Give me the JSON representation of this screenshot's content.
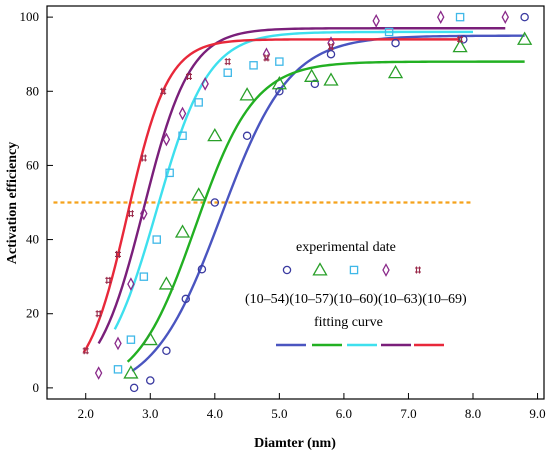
{
  "chart_data": {
    "type": "scatter",
    "xlabel": "Diamter (nm)",
    "ylabel": "Activation efficiency",
    "xlim": [
      1.4,
      9.1
    ],
    "ylim": [
      -3,
      103
    ],
    "x_ticks": [
      "2.0",
      "3.0",
      "4.0",
      "5.0",
      "6.0",
      "7.0",
      "8.0",
      "9.0"
    ],
    "x_tick_values": [
      2,
      3,
      4,
      5,
      6,
      7,
      8,
      9
    ],
    "y_ticks": [
      "0",
      "20",
      "40",
      "60",
      "80",
      "100"
    ],
    "y_tick_values": [
      0,
      20,
      40,
      60,
      80,
      100
    ],
    "reference_line": {
      "y": 50,
      "x_range": [
        1.5,
        8.0
      ],
      "color": "#f5a21b",
      "style": "dashed"
    },
    "legend": {
      "title_points": "experimental date",
      "title_curves": "fitting curve",
      "labels_text": "(10–54)(10–57)(10–60)(10–63)(10–69)"
    },
    "series": [
      {
        "name": "(10–54)",
        "marker": "circle",
        "marker_color": "#3a3aa0",
        "curve_color": "#4a55c0",
        "points": [
          [
            2.75,
            0
          ],
          [
            3.0,
            2
          ],
          [
            3.25,
            10
          ],
          [
            3.55,
            24
          ],
          [
            3.8,
            32
          ],
          [
            4.0,
            50
          ],
          [
            4.5,
            68
          ],
          [
            5.0,
            80
          ],
          [
            5.55,
            82
          ],
          [
            5.8,
            90
          ],
          [
            6.8,
            93
          ],
          [
            7.85,
            94
          ],
          [
            8.8,
            100
          ]
        ],
        "curve": {
          "x0": 4.1,
          "k": 1.9,
          "top": 95,
          "base": -2,
          "x_start": 2.72,
          "x_end": 8.8
        }
      },
      {
        "name": "(10–57)",
        "marker": "triangle",
        "marker_color": "#2aa02a",
        "curve_color": "#22b022",
        "points": [
          [
            2.7,
            4
          ],
          [
            3.0,
            13
          ],
          [
            3.25,
            28
          ],
          [
            3.5,
            42
          ],
          [
            3.75,
            52
          ],
          [
            4.0,
            68
          ],
          [
            4.5,
            79
          ],
          [
            5.0,
            82
          ],
          [
            5.5,
            84
          ],
          [
            5.8,
            83
          ],
          [
            6.8,
            85
          ],
          [
            7.8,
            92
          ],
          [
            8.8,
            94
          ]
        ],
        "curve": {
          "x0": 3.7,
          "k": 2.2,
          "top": 88,
          "base": -1,
          "x_start": 2.65,
          "x_end": 8.8
        }
      },
      {
        "name": "(10–60)",
        "marker": "square",
        "marker_color": "#3fb8e8",
        "curve_color": "#3ee0ee",
        "points": [
          [
            2.5,
            5
          ],
          [
            2.7,
            13
          ],
          [
            2.9,
            30
          ],
          [
            3.1,
            40
          ],
          [
            3.3,
            58
          ],
          [
            3.5,
            68
          ],
          [
            3.75,
            77
          ],
          [
            4.2,
            85
          ],
          [
            4.6,
            87
          ],
          [
            5.0,
            88
          ],
          [
            6.7,
            96
          ],
          [
            7.8,
            100
          ]
        ],
        "curve": {
          "x0": 3.1,
          "k": 2.5,
          "top": 96,
          "base": 0,
          "x_start": 2.45,
          "x_end": 8.0
        }
      },
      {
        "name": "(10–63)",
        "marker": "diamond",
        "marker_color": "#8a2a8a",
        "curve_color": "#7a1f7a",
        "points": [
          [
            2.2,
            4
          ],
          [
            2.5,
            12
          ],
          [
            2.7,
            28
          ],
          [
            2.9,
            47
          ],
          [
            3.25,
            67
          ],
          [
            3.5,
            74
          ],
          [
            3.85,
            82
          ],
          [
            4.8,
            90
          ],
          [
            5.8,
            93
          ],
          [
            6.5,
            99
          ],
          [
            7.5,
            100
          ],
          [
            8.5,
            100
          ]
        ],
        "curve": {
          "x0": 2.9,
          "k": 2.8,
          "top": 97,
          "base": 0,
          "x_start": 2.2,
          "x_end": 8.5
        }
      },
      {
        "name": "(10–69)",
        "marker": "hash",
        "marker_color": "#9a2a4a",
        "curve_color": "#e8283a",
        "points": [
          [
            2.0,
            10
          ],
          [
            2.2,
            20
          ],
          [
            2.35,
            29
          ],
          [
            2.5,
            36
          ],
          [
            2.7,
            47
          ],
          [
            2.9,
            62
          ],
          [
            3.2,
            80
          ],
          [
            3.6,
            84
          ],
          [
            4.2,
            88
          ],
          [
            4.8,
            89
          ],
          [
            5.8,
            92
          ],
          [
            7.8,
            94
          ]
        ],
        "curve": {
          "x0": 2.65,
          "k": 3.2,
          "top": 94,
          "base": 0,
          "x_start": 1.97,
          "x_end": 7.8
        }
      }
    ]
  }
}
